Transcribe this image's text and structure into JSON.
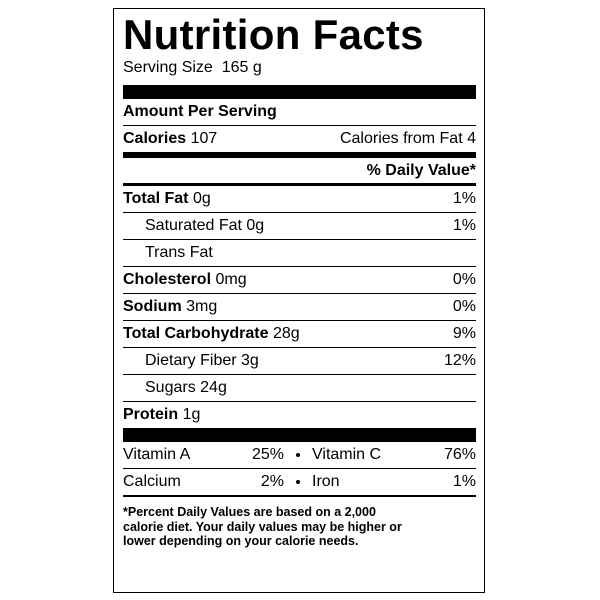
{
  "title": "Nutrition Facts",
  "serving_size": {
    "label": "Serving Size",
    "value": "165 g"
  },
  "amount_per_serving": "Amount Per Serving",
  "calories": {
    "label": "Calories",
    "value": "107",
    "from_fat": "Calories from Fat 4"
  },
  "daily_value_header": "% Daily Value*",
  "rows": [
    {
      "name": "Total Fat",
      "amount": "0g",
      "dv": "1%"
    },
    {
      "name": "Saturated Fat",
      "amount": "0g",
      "dv": "1%"
    },
    {
      "name": "Trans Fat"
    },
    {
      "name": "Cholesterol",
      "amount": "0mg",
      "dv": "0%"
    },
    {
      "name": "Sodium",
      "amount": "3mg",
      "dv": "0%"
    },
    {
      "name": "Total Carbohydrate",
      "amount": "28g",
      "dv": "9%"
    },
    {
      "name": "Dietary Fiber",
      "amount": "3g",
      "dv": "12%"
    },
    {
      "name": "Sugars",
      "amount": "24g"
    },
    {
      "name": "Protein",
      "amount": "1g"
    }
  ],
  "vitamins": [
    [
      {
        "name": "Vitamin A",
        "dv": "25%"
      },
      {
        "name": "Vitamin C",
        "dv": "76%"
      }
    ],
    [
      {
        "name": "Calcium",
        "dv": "2%"
      },
      {
        "name": "Iron",
        "dv": "1%"
      }
    ]
  ],
  "footnote": [
    "*Percent Daily Values are based on a 2,000",
    "calorie diet. Your daily values may be higher or",
    "lower depending on your calorie needs."
  ]
}
